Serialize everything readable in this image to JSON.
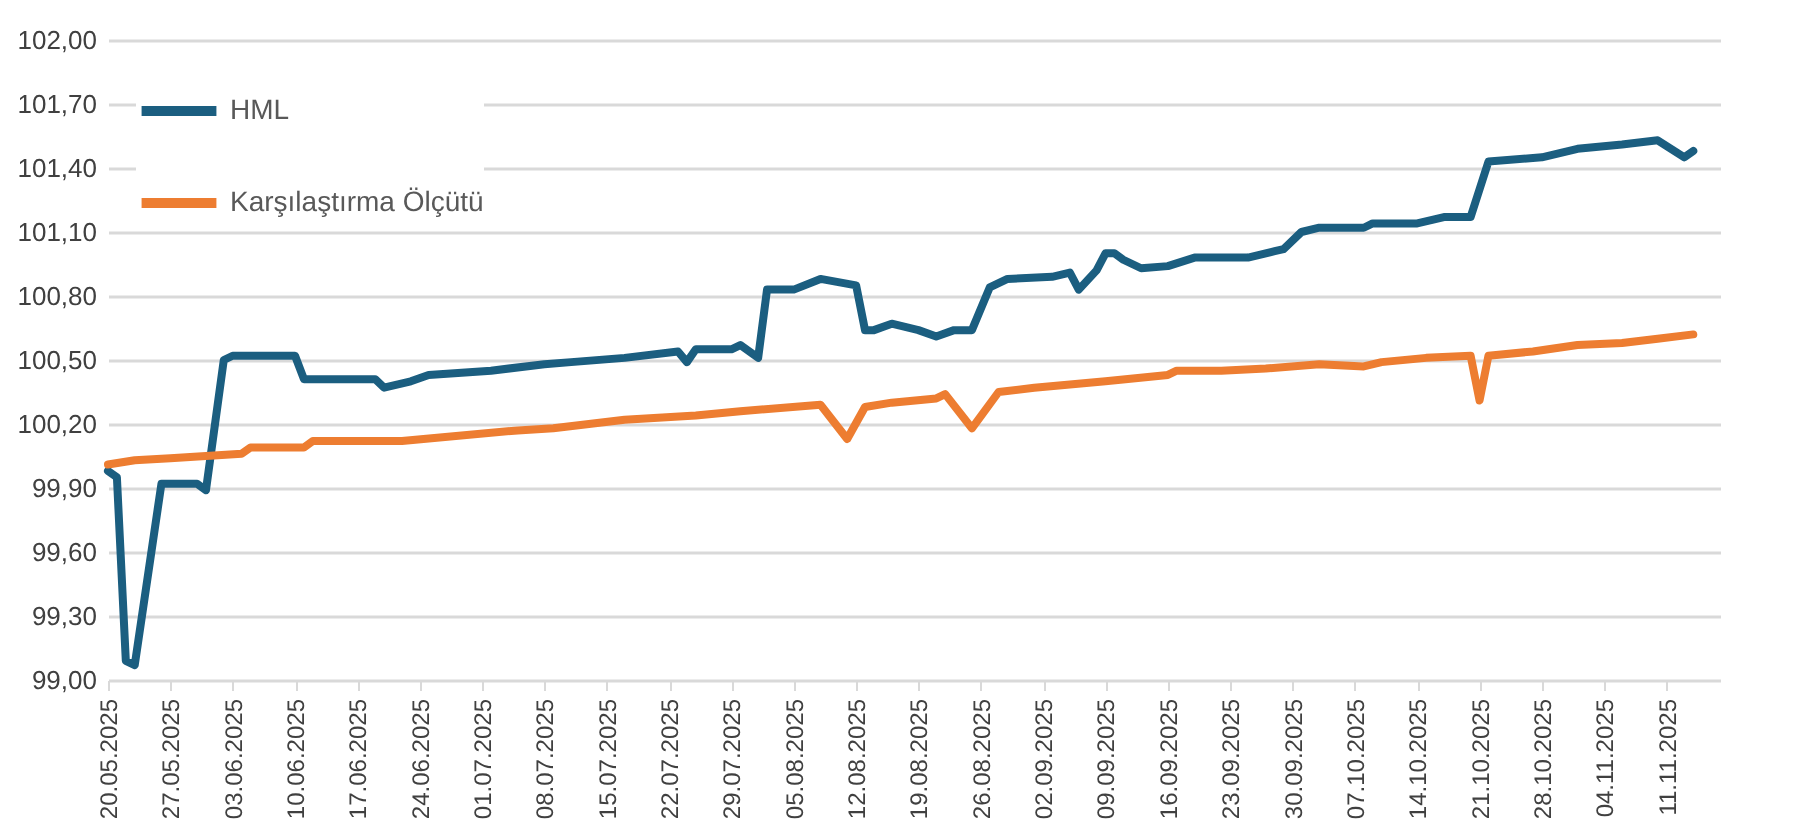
{
  "chart_data": {
    "type": "line",
    "grid": "y",
    "legend": "top left",
    "line_style": "solid",
    "xlim": [
      "2025-05-20",
      "2025-11-17"
    ],
    "ylim": [
      99,
      102
    ],
    "yticks": [
      {
        "value": 99,
        "label": "99,00"
      },
      {
        "value": 99.3,
        "label": "99,30"
      },
      {
        "value": 99.6,
        "label": "99,60"
      },
      {
        "value": 99.9,
        "label": "99,90"
      },
      {
        "value": 100.2,
        "label": "100,20"
      },
      {
        "value": 100.5,
        "label": "100,50"
      },
      {
        "value": 100.8,
        "label": "100,80"
      },
      {
        "value": 101.1,
        "label": "101,10"
      },
      {
        "value": 101.4,
        "label": "101,40"
      },
      {
        "value": 101.7,
        "label": "101,70"
      },
      {
        "value": 102,
        "label": "102,00"
      }
    ],
    "xticks": [
      {
        "value": "2025-05-20",
        "label": "20.05.2025"
      },
      {
        "value": "2025-05-27",
        "label": "27.05.2025"
      },
      {
        "value": "2025-06-03",
        "label": "03.06.2025"
      },
      {
        "value": "2025-06-10",
        "label": "10.06.2025"
      },
      {
        "value": "2025-06-17",
        "label": "17.06.2025"
      },
      {
        "value": "2025-06-24",
        "label": "24.06.2025"
      },
      {
        "value": "2025-07-01",
        "label": "01.07.2025"
      },
      {
        "value": "2025-07-08",
        "label": "08.07.2025"
      },
      {
        "value": "2025-07-15",
        "label": "15.07.2025"
      },
      {
        "value": "2025-07-22",
        "label": "22.07.2025"
      },
      {
        "value": "2025-07-29",
        "label": "29.07.2025"
      },
      {
        "value": "2025-08-05",
        "label": "05.08.2025"
      },
      {
        "value": "2025-08-12",
        "label": "12.08.2025"
      },
      {
        "value": "2025-08-19",
        "label": "19.08.2025"
      },
      {
        "value": "2025-08-26",
        "label": "26.08.2025"
      },
      {
        "value": "2025-09-02",
        "label": "02.09.2025"
      },
      {
        "value": "2025-09-09",
        "label": "09.09.2025"
      },
      {
        "value": "2025-09-16",
        "label": "16.09.2025"
      },
      {
        "value": "2025-09-23",
        "label": "23.09.2025"
      },
      {
        "value": "2025-09-30",
        "label": "30.09.2025"
      },
      {
        "value": "2025-10-07",
        "label": "07.10.2025"
      },
      {
        "value": "2025-10-14",
        "label": "14.10.2025"
      },
      {
        "value": "2025-10-21",
        "label": "21.10.2025"
      },
      {
        "value": "2025-10-28",
        "label": "28.10.2025"
      },
      {
        "value": "2025-11-04",
        "label": "04.11.2025"
      },
      {
        "value": "2025-11-11",
        "label": "11.11.2025"
      }
    ],
    "series": [
      {
        "name": "HML",
        "color": "#1b5e80",
        "x": [
          "2025-05-20",
          "2025-05-21",
          "2025-05-22",
          "2025-05-23",
          "2025-05-26",
          "2025-05-30",
          "2025-05-31",
          "2025-06-02",
          "2025-06-03",
          "2025-06-10",
          "2025-06-11",
          "2025-06-19",
          "2025-06-20",
          "2025-06-23",
          "2025-06-25",
          "2025-07-02",
          "2025-07-08",
          "2025-07-11",
          "2025-07-17",
          "2025-07-23",
          "2025-07-24",
          "2025-07-25",
          "2025-07-29",
          "2025-07-30",
          "2025-08-01",
          "2025-08-02",
          "2025-08-05",
          "2025-08-08",
          "2025-08-12",
          "2025-08-13",
          "2025-08-14",
          "2025-08-16",
          "2025-08-19",
          "2025-08-21",
          "2025-08-23",
          "2025-08-25",
          "2025-08-27",
          "2025-08-29",
          "2025-09-03",
          "2025-09-05",
          "2025-09-06",
          "2025-09-08",
          "2025-09-09",
          "2025-09-10",
          "2025-09-11",
          "2025-09-13",
          "2025-09-16",
          "2025-09-19",
          "2025-09-25",
          "2025-09-28",
          "2025-09-29",
          "2025-10-01",
          "2025-10-03",
          "2025-10-08",
          "2025-10-09",
          "2025-10-14",
          "2025-10-17",
          "2025-10-20",
          "2025-10-22",
          "2025-10-28",
          "2025-11-01",
          "2025-11-06",
          "2025-11-10",
          "2025-11-13",
          "2025-11-14"
        ],
        "values": [
          99.98,
          99.95,
          99.09,
          99.07,
          99.92,
          99.92,
          99.89,
          100.5,
          100.52,
          100.52,
          100.41,
          100.41,
          100.37,
          100.4,
          100.43,
          100.45,
          100.48,
          100.49,
          100.51,
          100.54,
          100.49,
          100.55,
          100.55,
          100.57,
          100.51,
          100.83,
          100.83,
          100.88,
          100.85,
          100.64,
          100.64,
          100.67,
          100.64,
          100.61,
          100.64,
          100.64,
          100.84,
          100.88,
          100.89,
          100.91,
          100.83,
          100.92,
          101.0,
          101.0,
          100.97,
          100.93,
          100.94,
          100.98,
          100.98,
          101.01,
          101.02,
          101.1,
          101.12,
          101.12,
          101.14,
          101.14,
          101.17,
          101.17,
          101.43,
          101.45,
          101.49,
          101.51,
          101.53,
          101.45,
          101.48
        ]
      },
      {
        "name": "Karşılaştırma Ölçütü",
        "color": "#ed7d31",
        "x": [
          "2025-05-20",
          "2025-05-23",
          "2025-05-27",
          "2025-06-04",
          "2025-06-05",
          "2025-06-11",
          "2025-06-12",
          "2025-06-22",
          "2025-07-05",
          "2025-07-09",
          "2025-07-17",
          "2025-07-25",
          "2025-07-30",
          "2025-08-08",
          "2025-08-11",
          "2025-08-13",
          "2025-08-16",
          "2025-08-21",
          "2025-08-22",
          "2025-08-25",
          "2025-08-28",
          "2025-09-01",
          "2025-09-09",
          "2025-09-16",
          "2025-09-17",
          "2025-09-22",
          "2025-09-27",
          "2025-10-03",
          "2025-10-08",
          "2025-10-10",
          "2025-10-15",
          "2025-10-20",
          "2025-10-21",
          "2025-10-22",
          "2025-10-27",
          "2025-11-01",
          "2025-11-06",
          "2025-11-10",
          "2025-11-14"
        ],
        "values": [
          100.01,
          100.03,
          100.04,
          100.06,
          100.09,
          100.09,
          100.12,
          100.12,
          100.17,
          100.18,
          100.22,
          100.24,
          100.26,
          100.29,
          100.13,
          100.28,
          100.3,
          100.32,
          100.34,
          100.18,
          100.35,
          100.37,
          100.4,
          100.43,
          100.45,
          100.45,
          100.46,
          100.48,
          100.47,
          100.49,
          100.51,
          100.52,
          100.31,
          100.52,
          100.54,
          100.57,
          100.58,
          100.6,
          100.62
        ]
      }
    ]
  }
}
